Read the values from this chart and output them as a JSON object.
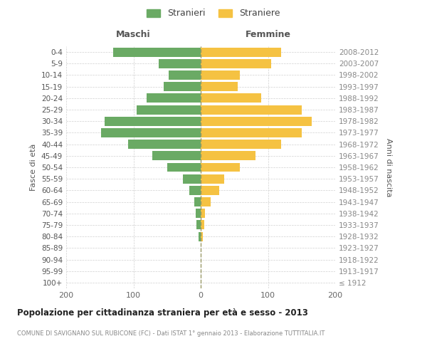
{
  "age_groups": [
    "100+",
    "95-99",
    "90-94",
    "85-89",
    "80-84",
    "75-79",
    "70-74",
    "65-69",
    "60-64",
    "55-59",
    "50-54",
    "45-49",
    "40-44",
    "35-39",
    "30-34",
    "25-29",
    "20-24",
    "15-19",
    "10-14",
    "5-9",
    "0-4"
  ],
  "birth_years": [
    "≤ 1912",
    "1913-1917",
    "1918-1922",
    "1923-1927",
    "1928-1932",
    "1933-1937",
    "1938-1942",
    "1943-1947",
    "1948-1952",
    "1953-1957",
    "1958-1962",
    "1963-1967",
    "1968-1972",
    "1973-1977",
    "1978-1982",
    "1983-1987",
    "1988-1992",
    "1993-1997",
    "1998-2002",
    "2003-2007",
    "2008-2012"
  ],
  "maschi": [
    0,
    0,
    0,
    0,
    3,
    6,
    7,
    9,
    17,
    26,
    50,
    72,
    108,
    148,
    143,
    95,
    80,
    55,
    48,
    62,
    130
  ],
  "femmine": [
    0,
    0,
    0,
    0,
    3,
    5,
    6,
    15,
    28,
    35,
    58,
    82,
    120,
    150,
    165,
    150,
    90,
    55,
    58,
    105,
    120
  ],
  "male_color": "#6aaa64",
  "female_color": "#f5c242",
  "background_color": "#ffffff",
  "grid_color": "#cccccc",
  "xlim": [
    -200,
    200
  ],
  "xticks": [
    -200,
    -100,
    0,
    100,
    200
  ],
  "xticklabels": [
    "200",
    "100",
    "0",
    "100",
    "200"
  ],
  "title": "Popolazione per cittadinanza straniera per età e sesso - 2013",
  "subtitle": "COMUNE DI SAVIGNANO SUL RUBICONE (FC) - Dati ISTAT 1° gennaio 2013 - Elaborazione TUTTITALIA.IT",
  "ylabel_left": "Fasce di età",
  "ylabel_right": "Anni di nascita",
  "header_left": "Maschi",
  "header_right": "Femmine",
  "legend_stranieri": "Stranieri",
  "legend_straniere": "Straniere"
}
